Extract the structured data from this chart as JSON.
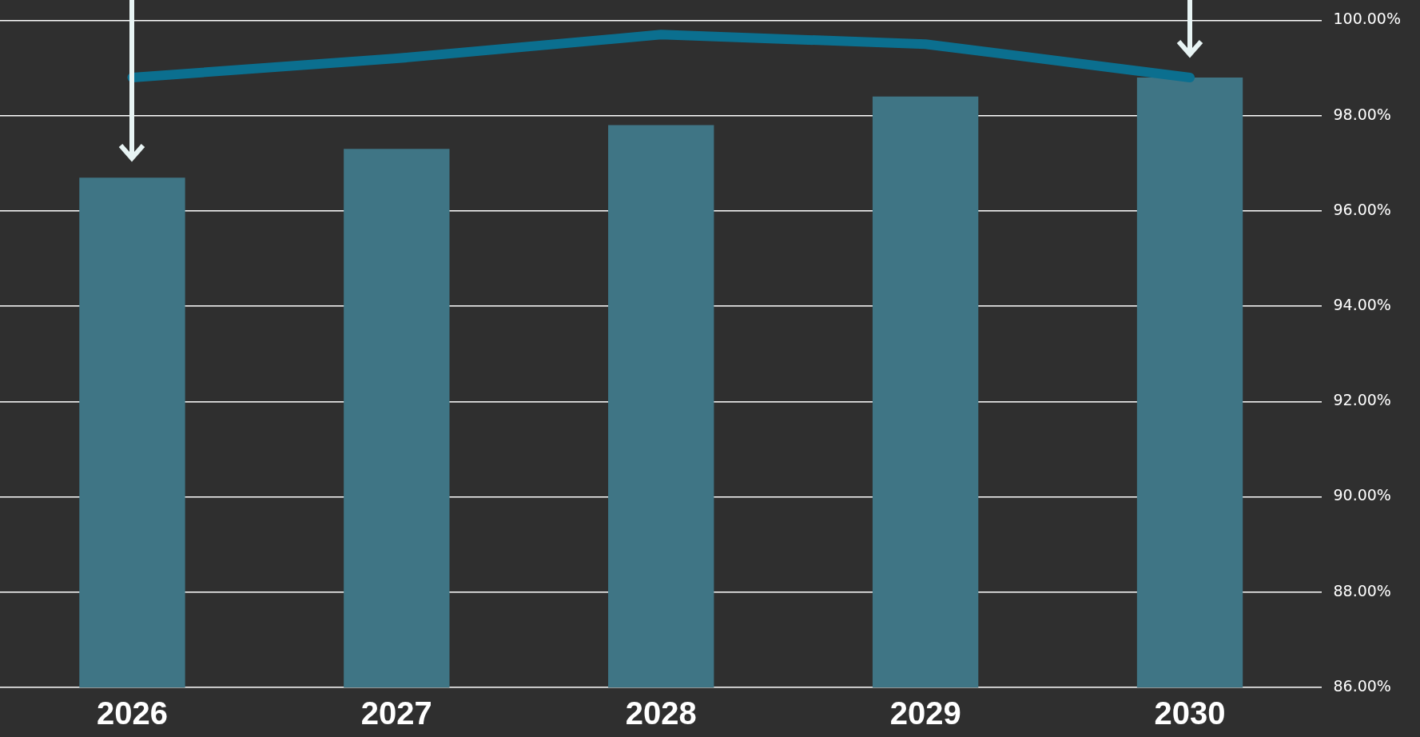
{
  "chart_data": {
    "type": "bar",
    "categories": [
      "2026",
      "2027",
      "2028",
      "2029",
      "2030"
    ],
    "series": [
      {
        "color": "#3f7585",
        "values": [
          96.7,
          97.3,
          97.8,
          98.4,
          98.8
        ]
      },
      {
        "type": "line",
        "color": "#0b6f8f",
        "values": [
          98.8,
          99.2,
          99.7,
          99.5,
          98.8
        ]
      }
    ],
    "ylim": [
      86,
      100
    ],
    "yticks": [
      {
        "value": 86,
        "label": "86.00%"
      },
      {
        "value": 88,
        "label": "88.00%"
      },
      {
        "value": 90,
        "label": "90.00%"
      },
      {
        "value": 92,
        "label": "92.00%"
      },
      {
        "value": 94,
        "label": "94.00%"
      },
      {
        "value": 96,
        "label": "96.00%"
      },
      {
        "value": 98,
        "label": "98.00%"
      },
      {
        "value": 100,
        "label": "100.00%"
      }
    ],
    "grid": "y",
    "legend": false,
    "marker": "none"
  }
}
